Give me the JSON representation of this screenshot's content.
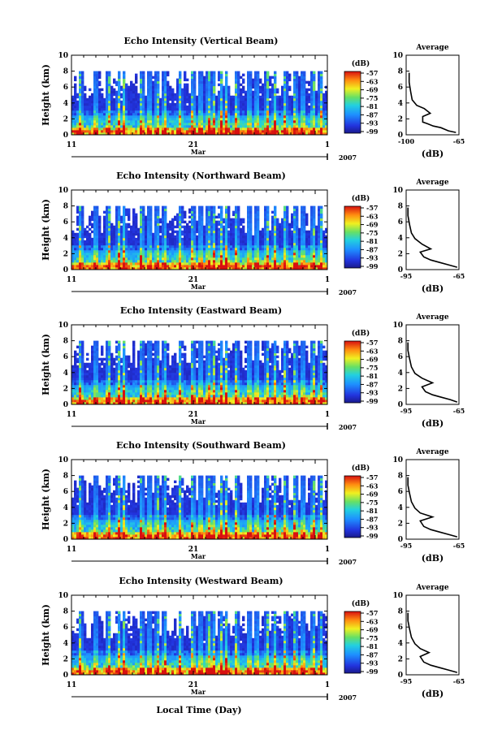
{
  "figure": {
    "xlabel_bottom": "Local Time (Day)",
    "month_label": "Mar",
    "year_label": "2007",
    "colorbar_unit": "(dB)",
    "average_title": "Average",
    "average_xlabel": "(dB)"
  },
  "chart_data": [
    {
      "type": "heatmap",
      "title": "Echo Intensity (Vertical Beam)",
      "ylabel": "Height (km)",
      "xlim": [
        11,
        1
      ],
      "x_tick_labels": [
        "11",
        "21",
        "1"
      ],
      "ylim": [
        0,
        10
      ],
      "y_ticks": [
        0,
        2,
        4,
        6,
        8,
        10
      ],
      "colorbar": {
        "label": "(dB)",
        "ticks": [
          -57,
          -63,
          -69,
          -75,
          -81,
          -87,
          -93,
          -99
        ]
      },
      "average_profile": {
        "title": "Average",
        "xlabel": "(dB)",
        "xlim": [
          -100,
          -65
        ],
        "x_tick_labels": [
          "-100",
          "-65"
        ],
        "ylim": [
          0,
          10
        ],
        "points": [
          [
            -67,
            0.3
          ],
          [
            -72,
            0.5
          ],
          [
            -77,
            0.9
          ],
          [
            -82,
            1.1
          ],
          [
            -86,
            1.4
          ],
          [
            -89,
            1.6
          ],
          [
            -89,
            2.3
          ],
          [
            -84,
            2.7
          ],
          [
            -88,
            3.3
          ],
          [
            -93,
            3.7
          ],
          [
            -96,
            4.4
          ],
          [
            -97,
            5.4
          ],
          [
            -98,
            6.6
          ],
          [
            -98,
            7.8
          ]
        ]
      }
    },
    {
      "type": "heatmap",
      "title": "Echo Intensity (Northward Beam)",
      "ylabel": "Height (km)",
      "xlim": [
        11,
        1
      ],
      "x_tick_labels": [
        "11",
        "21",
        "1"
      ],
      "ylim": [
        0,
        10
      ],
      "y_ticks": [
        0,
        2,
        4,
        6,
        8,
        10
      ],
      "colorbar": {
        "label": "(dB)",
        "ticks": [
          -57,
          -63,
          -69,
          -75,
          -81,
          -87,
          -93,
          -99
        ]
      },
      "average_profile": {
        "title": "Average",
        "xlabel": "(dB)",
        "xlim": [
          -95,
          -65
        ],
        "x_tick_labels": [
          "-95",
          "-65"
        ],
        "ylim": [
          0,
          10
        ],
        "points": [
          [
            -66,
            0.3
          ],
          [
            -71,
            0.6
          ],
          [
            -76,
            0.9
          ],
          [
            -81,
            1.2
          ],
          [
            -85,
            1.6
          ],
          [
            -87,
            2.2
          ],
          [
            -81,
            2.6
          ],
          [
            -86,
            3.2
          ],
          [
            -90,
            3.9
          ],
          [
            -92,
            4.6
          ],
          [
            -93,
            5.6
          ],
          [
            -94,
            6.8
          ],
          [
            -94,
            7.8
          ]
        ]
      }
    },
    {
      "type": "heatmap",
      "title": "Echo Intensity (Eastward Beam)",
      "ylabel": "Height (km)",
      "xlim": [
        11,
        1
      ],
      "x_tick_labels": [
        "11",
        "21",
        "1"
      ],
      "ylim": [
        0,
        10
      ],
      "y_ticks": [
        0,
        2,
        4,
        6,
        8,
        10
      ],
      "colorbar": {
        "label": "(dB)",
        "ticks": [
          -57,
          -63,
          -69,
          -75,
          -81,
          -87,
          -93,
          -99
        ]
      },
      "average_profile": {
        "title": "Average",
        "xlabel": "(dB)",
        "xlim": [
          -95,
          -65
        ],
        "x_tick_labels": [
          "-95",
          "-65"
        ],
        "ylim": [
          0,
          10
        ],
        "points": [
          [
            -66,
            0.3
          ],
          [
            -70,
            0.6
          ],
          [
            -75,
            0.9
          ],
          [
            -80,
            1.2
          ],
          [
            -84,
            1.6
          ],
          [
            -86,
            2.2
          ],
          [
            -80,
            2.7
          ],
          [
            -86,
            3.3
          ],
          [
            -90,
            3.9
          ],
          [
            -92,
            4.7
          ],
          [
            -93,
            5.7
          ],
          [
            -94,
            6.8
          ],
          [
            -94,
            7.8
          ]
        ]
      }
    },
    {
      "type": "heatmap",
      "title": "Echo Intensity (Southward Beam)",
      "ylabel": "Height (km)",
      "xlim": [
        11,
        1
      ],
      "x_tick_labels": [
        "11",
        "21",
        "1"
      ],
      "ylim": [
        0,
        10
      ],
      "y_ticks": [
        0,
        2,
        4,
        6,
        8,
        10
      ],
      "colorbar": {
        "label": "(dB)",
        "ticks": [
          -57,
          -63,
          -69,
          -75,
          -81,
          -87,
          -93,
          -99
        ]
      },
      "average_profile": {
        "title": "Average",
        "xlabel": "(dB)",
        "xlim": [
          -95,
          -65
        ],
        "x_tick_labels": [
          "-95",
          "-65"
        ],
        "ylim": [
          0,
          10
        ],
        "points": [
          [
            -66,
            0.3
          ],
          [
            -71,
            0.6
          ],
          [
            -76,
            0.9
          ],
          [
            -81,
            1.2
          ],
          [
            -85,
            1.6
          ],
          [
            -87,
            2.3
          ],
          [
            -80,
            2.8
          ],
          [
            -87,
            3.3
          ],
          [
            -90,
            3.9
          ],
          [
            -92,
            4.7
          ],
          [
            -93,
            5.7
          ],
          [
            -94,
            6.8
          ],
          [
            -94,
            7.8
          ]
        ]
      }
    },
    {
      "type": "heatmap",
      "title": "Echo Intensity (Westward Beam)",
      "ylabel": "Height (km)",
      "xlim": [
        11,
        1
      ],
      "x_tick_labels": [
        "11",
        "21",
        "1"
      ],
      "ylim": [
        0,
        10
      ],
      "y_ticks": [
        0,
        2,
        4,
        6,
        8,
        10
      ],
      "colorbar": {
        "label": "(dB)",
        "ticks": [
          -57,
          -63,
          -69,
          -75,
          -81,
          -87,
          -93,
          -99
        ]
      },
      "average_profile": {
        "title": "Average",
        "xlabel": "(dB)",
        "xlim": [
          -95,
          -65
        ],
        "x_tick_labels": [
          "-95",
          "-65"
        ],
        "ylim": [
          0,
          10
        ],
        "points": [
          [
            -66,
            0.3
          ],
          [
            -71,
            0.6
          ],
          [
            -76,
            0.9
          ],
          [
            -81,
            1.2
          ],
          [
            -85,
            1.6
          ],
          [
            -87,
            2.3
          ],
          [
            -82,
            2.8
          ],
          [
            -87,
            3.3
          ],
          [
            -90,
            3.9
          ],
          [
            -92,
            4.7
          ],
          [
            -93,
            5.7
          ],
          [
            -94,
            6.8
          ],
          [
            -94,
            7.8
          ]
        ]
      }
    }
  ]
}
